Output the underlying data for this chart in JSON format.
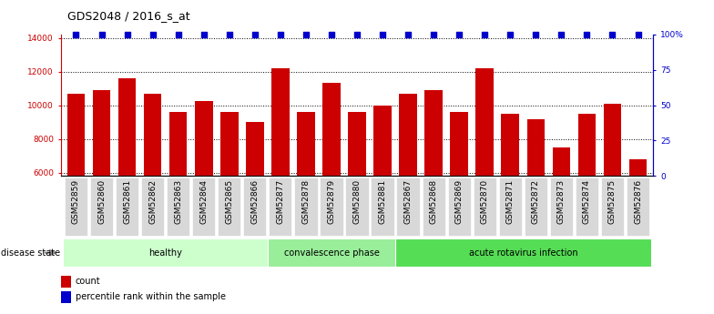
{
  "title": "GDS2048 / 2016_s_at",
  "categories": [
    "GSM52859",
    "GSM52860",
    "GSM52861",
    "GSM52862",
    "GSM52863",
    "GSM52864",
    "GSM52865",
    "GSM52866",
    "GSM52877",
    "GSM52878",
    "GSM52879",
    "GSM52880",
    "GSM52881",
    "GSM52867",
    "GSM52868",
    "GSM52869",
    "GSM52870",
    "GSM52871",
    "GSM52872",
    "GSM52873",
    "GSM52874",
    "GSM52875",
    "GSM52876"
  ],
  "values": [
    10700,
    10900,
    11600,
    10700,
    9600,
    10250,
    9600,
    9000,
    12200,
    9600,
    11350,
    9600,
    9950,
    10700,
    10900,
    9600,
    12200,
    9500,
    9150,
    7500,
    9500,
    10100,
    6800
  ],
  "percentile_values": [
    100,
    100,
    100,
    100,
    100,
    100,
    100,
    100,
    100,
    100,
    100,
    100,
    100,
    100,
    100,
    100,
    100,
    100,
    100,
    100,
    100,
    100,
    100
  ],
  "groups": [
    {
      "label": "healthy",
      "start": 0,
      "end": 8,
      "color": "#ccffcc"
    },
    {
      "label": "convalescence phase",
      "start": 8,
      "end": 13,
      "color": "#99ee99"
    },
    {
      "label": "acute rotavirus infection",
      "start": 13,
      "end": 23,
      "color": "#55dd55"
    }
  ],
  "bar_color": "#cc0000",
  "percentile_color": "#0000cc",
  "ylim_left": [
    5800,
    14200
  ],
  "ylim_right": [
    0,
    100
  ],
  "yticks_left": [
    6000,
    8000,
    10000,
    12000,
    14000
  ],
  "yticks_right": [
    0,
    25,
    50,
    75,
    100
  ],
  "grid_color": "#000000",
  "background_color": "#ffffff",
  "title_fontsize": 9,
  "tick_fontsize": 6.5,
  "label_fontsize": 7,
  "legend_count_label": "count",
  "legend_percentile_label": "percentile rank within the sample",
  "disease_state_label": "disease state"
}
